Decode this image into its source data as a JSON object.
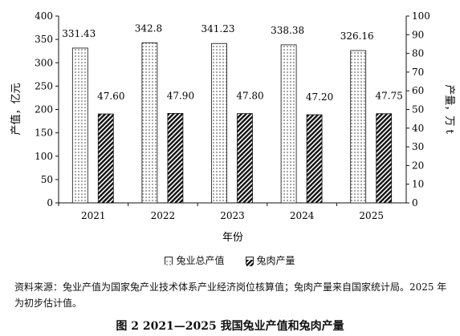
{
  "chart_data": {
    "type": "bar",
    "categories": [
      "2021",
      "2022",
      "2023",
      "2024",
      "2025"
    ],
    "series": [
      {
        "name": "兔业总产值",
        "axis": "left",
        "pattern": "dots",
        "values": [
          331.43,
          342.8,
          341.23,
          338.38,
          326.16
        ],
        "labels": [
          "331.43",
          "342.8",
          "341.23",
          "338.38",
          "326.16"
        ]
      },
      {
        "name": "兔肉产量",
        "axis": "right",
        "pattern": "hatch",
        "values": [
          47.6,
          47.9,
          47.8,
          47.2,
          47.75
        ],
        "labels": [
          "47.60",
          "47.90",
          "47.80",
          "47.20",
          "47.75"
        ]
      }
    ],
    "xlabel": "年份",
    "ylabel_left": "产值，亿元",
    "ylabel_right": "产量，万 t",
    "ylim_left": [
      0,
      400
    ],
    "yticks_left": [
      "0",
      "50",
      "100",
      "150",
      "200",
      "250",
      "300",
      "350",
      "400"
    ],
    "ylim_right": [
      0,
      100
    ],
    "yticks_right": [
      "0",
      "10",
      "20",
      "30",
      "40",
      "50",
      "60",
      "70",
      "80",
      "90",
      "100"
    ],
    "grid": false,
    "legend_position": "bottom"
  },
  "legend": {
    "item1": "兔业总产值",
    "item2": "兔肉产量"
  },
  "source_note": "资料来源：兔业产值为国家兔产业技术体系产业经济岗位核算值；兔肉产量来自国家统计局。2025 年为初步估计值。",
  "caption": "图 2  2021—2025 我国兔业产值和兔肉产量"
}
